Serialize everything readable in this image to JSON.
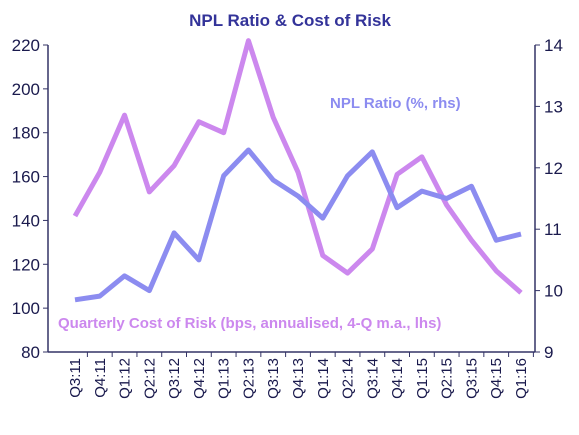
{
  "chart_data": {
    "type": "line",
    "title": "NPL Ratio & Cost of Risk",
    "categories": [
      "Q3:11",
      "Q4:11",
      "Q1:12",
      "Q2:12",
      "Q3:12",
      "Q4:12",
      "Q1:13",
      "Q2:13",
      "Q3:13",
      "Q4:13",
      "Q1:14",
      "Q2:14",
      "Q3:14",
      "Q4:14",
      "Q1:15",
      "Q2:15",
      "Q3:15",
      "Q4:15",
      "Q1:16"
    ],
    "series": [
      {
        "name": "Quarterly Cost of Risk (bps, annualised, 4-Q m.a., lhs)",
        "color": "#cc88ee",
        "values": [
          142,
          162,
          188,
          153,
          165,
          185,
          180,
          222,
          187,
          162,
          124,
          116,
          127,
          161,
          169,
          147,
          131,
          117,
          107
        ]
      },
      {
        "name": "NPL Ratio (%, rhs)",
        "color": "#8c8cf0",
        "axis": "y2",
        "values": [
          9.85,
          9.91,
          10.24,
          10.0,
          10.94,
          10.5,
          11.87,
          12.29,
          11.8,
          11.54,
          11.18,
          11.87,
          12.26,
          11.35,
          11.62,
          11.5,
          11.7,
          10.82,
          10.92
        ]
      }
    ],
    "ylim": [
      80,
      220
    ],
    "yticks": [
      80,
      100,
      120,
      140,
      160,
      180,
      200,
      220
    ],
    "y2lim": [
      9,
      14
    ],
    "y2ticks": [
      9,
      10,
      11,
      12,
      13,
      14
    ]
  }
}
